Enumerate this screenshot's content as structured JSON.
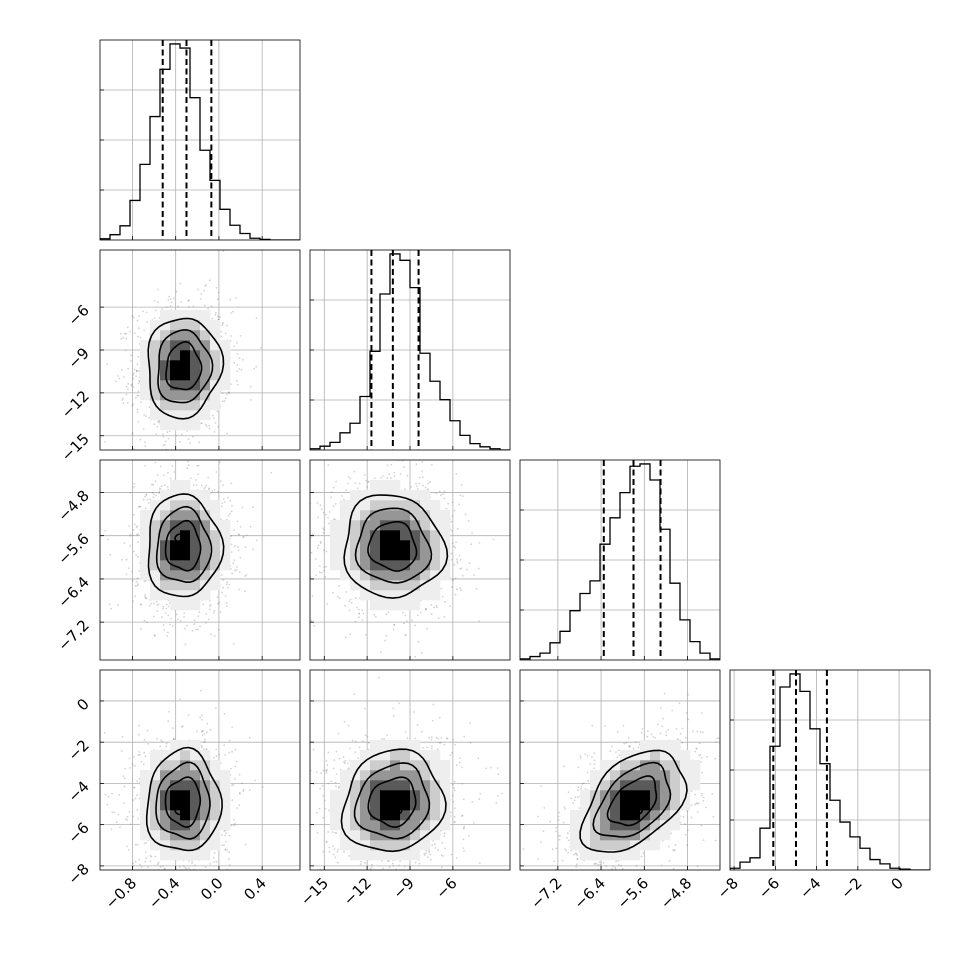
{
  "chart_data": {
    "type": "corner",
    "grid": true,
    "parameters": [
      {
        "range": [
          -1.1,
          0.75
        ],
        "ticks": [
          -0.8,
          -0.4,
          0.0,
          0.4
        ],
        "tick_labels": [
          "−0.8",
          "−0.4",
          "0.0",
          "0.4"
        ],
        "quantiles": [
          -0.52,
          -0.3,
          -0.07
        ],
        "hist": {
          "edges": [
            -1.1,
            -1.0075,
            -0.915,
            -0.8225,
            -0.73,
            -0.6375,
            -0.545,
            -0.4525,
            -0.36,
            -0.2675,
            -0.175,
            -0.0825,
            0.01,
            0.1025,
            0.195,
            0.2875,
            0.38,
            0.4725,
            0.565,
            0.6575,
            0.75
          ],
          "counts": [
            2,
            9,
            24,
            67,
            128,
            209,
            289,
            332,
            325,
            241,
            152,
            101,
            52,
            25,
            11,
            3,
            1,
            0,
            0,
            0
          ]
        }
      },
      {
        "range": [
          -16.0,
          -2.0
        ],
        "ticks": [
          -15,
          -12,
          -9,
          -6
        ],
        "tick_labels": [
          "−15",
          "−12",
          "−9",
          "−6"
        ],
        "quantiles": [
          -11.7,
          -10.2,
          -8.4
        ],
        "hist": {
          "edges": [
            -16.0,
            -15.3,
            -14.6,
            -13.9,
            -13.2,
            -12.5,
            -11.8,
            -11.1,
            -10.4,
            -9.7,
            -9.0,
            -8.3,
            -7.6,
            -6.9,
            -6.2,
            -5.5,
            -4.8,
            -4.1,
            -3.4,
            -2.7,
            -2.0
          ],
          "counts": [
            2,
            6,
            12,
            27,
            42,
            84,
            155,
            245,
            308,
            298,
            255,
            152,
            108,
            79,
            46,
            23,
            10,
            5,
            2,
            0
          ]
        }
      },
      {
        "range": [
          -7.9,
          -4.2
        ],
        "ticks": [
          -7.2,
          -6.4,
          -5.6,
          -4.8
        ],
        "tick_labels": [
          "−7.2",
          "−6.4",
          "−5.6",
          "−4.8"
        ],
        "quantiles": [
          -6.35,
          -5.8,
          -5.3
        ],
        "hist": {
          "edges": [
            -7.9,
            -7.715,
            -7.53,
            -7.345,
            -7.16,
            -6.975,
            -6.79,
            -6.605,
            -6.42,
            -6.235,
            -6.05,
            -5.865,
            -5.68,
            -5.495,
            -5.31,
            -5.125,
            -4.94,
            -4.755,
            -4.57,
            -4.385,
            -4.2
          ],
          "counts": [
            1,
            3,
            6,
            15,
            25,
            43,
            58,
            69,
            101,
            124,
            146,
            169,
            171,
            157,
            114,
            67,
            35,
            16,
            6,
            1
          ]
        }
      },
      {
        "range": [
          -8.2,
          1.5
        ],
        "ticks": [
          -8,
          -6,
          -4,
          -2,
          0
        ],
        "tick_labels": [
          "−8",
          "−6",
          "−4",
          "−2",
          "0"
        ],
        "quantiles": [
          -6.1,
          -5.0,
          -3.5
        ],
        "hist": {
          "edges": [
            -8.2,
            -7.715,
            -7.23,
            -6.745,
            -6.26,
            -5.775,
            -5.29,
            -4.805,
            -4.32,
            -3.835,
            -3.35,
            -2.865,
            -2.38,
            -1.895,
            -1.41,
            -0.925,
            -0.44,
            0.045,
            0.53,
            1.015,
            1.5
          ],
          "counts": [
            2,
            9,
            14,
            48,
            142,
            210,
            225,
            205,
            162,
            122,
            80,
            55,
            38,
            25,
            12,
            7,
            2,
            1,
            0,
            0
          ]
        }
      }
    ],
    "pairs": [
      {
        "row": 1,
        "col": 0,
        "center": [
          -0.33,
          -10.2
        ],
        "sd": [
          0.18,
          1.85
        ],
        "rho": 0.05,
        "peak": [
          -0.35,
          -10.3
        ]
      },
      {
        "row": 2,
        "col": 0,
        "center": [
          -0.33,
          -5.8
        ],
        "sd": [
          0.18,
          0.5
        ],
        "rho": 0.0,
        "peak": [
          -0.35,
          -5.65
        ]
      },
      {
        "row": 2,
        "col": 1,
        "center": [
          -10.2,
          -5.8
        ],
        "sd": [
          1.85,
          0.5
        ],
        "rho": -0.05,
        "peak": [
          -10.5,
          -5.65
        ]
      },
      {
        "row": 3,
        "col": 0,
        "center": [
          -0.33,
          -4.9
        ],
        "sd": [
          0.18,
          1.3
        ],
        "rho": 0.03,
        "peak": [
          -0.35,
          -5.3
        ]
      },
      {
        "row": 3,
        "col": 1,
        "center": [
          -10.2,
          -4.9
        ],
        "sd": [
          1.85,
          1.3
        ],
        "rho": 0.1,
        "peak": [
          -10.0,
          -5.3
        ]
      },
      {
        "row": 3,
        "col": 2,
        "center": [
          -5.8,
          -4.9
        ],
        "sd": [
          0.5,
          1.3
        ],
        "rho": 0.45,
        "peak": [
          -5.75,
          -5.3
        ]
      }
    ]
  }
}
